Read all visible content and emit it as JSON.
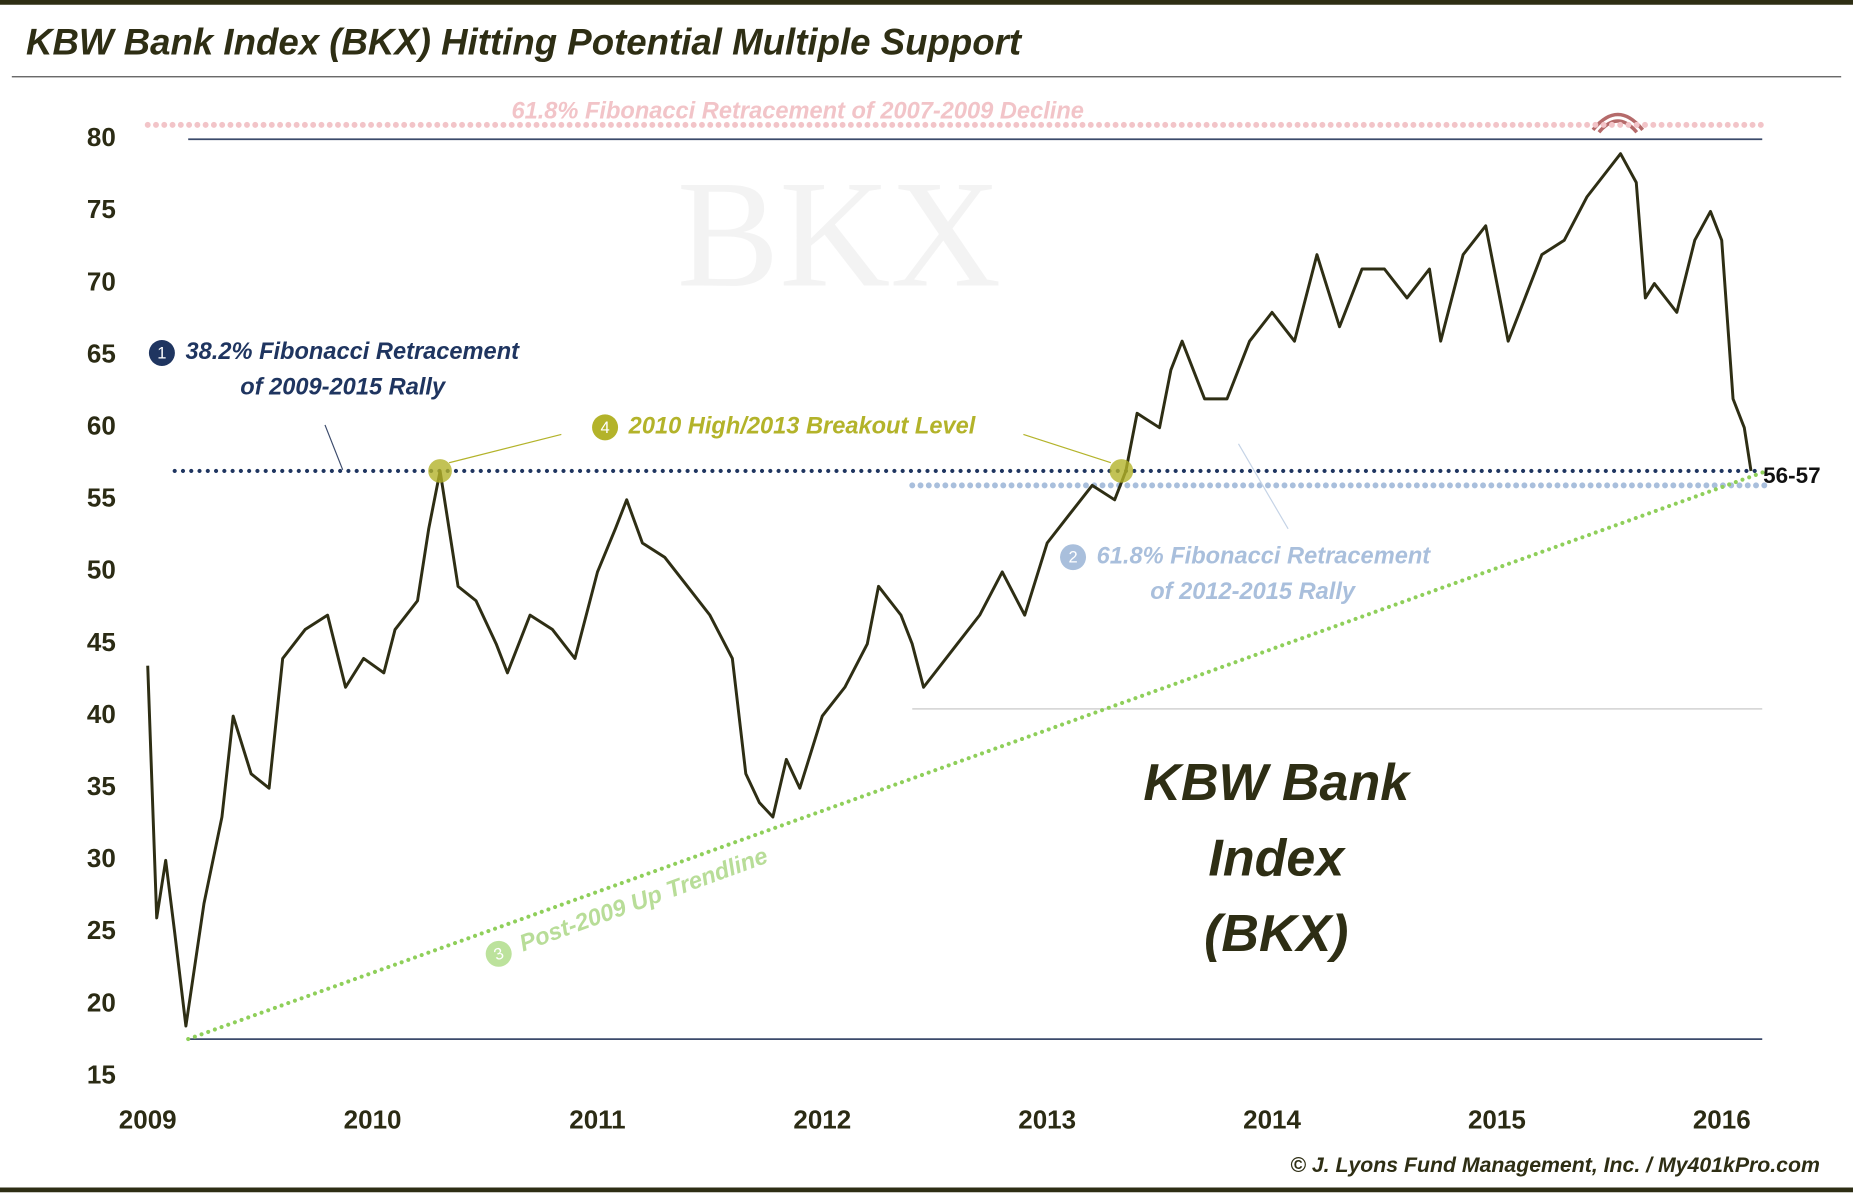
{
  "chart_data": {
    "type": "line",
    "title": "KBW Bank Index (BKX) Hitting Potential Multiple Support",
    "watermark": "BKX",
    "big_label": [
      "KBW Bank",
      "Index",
      "(BKX)"
    ],
    "footer": "© J. Lyons Fund Management, Inc. / My401kPro.com",
    "xlim": [
      2009,
      2016.2
    ],
    "xticks": [
      2009,
      2010,
      2011,
      2012,
      2013,
      2014,
      2015,
      2016
    ],
    "ylim": [
      15,
      80
    ],
    "yticks": [
      15,
      20,
      25,
      30,
      35,
      40,
      45,
      50,
      55,
      60,
      65,
      70,
      75,
      80
    ],
    "series": [
      {
        "name": "BKX",
        "color": "#2e2e14",
        "x": [
          2009.0,
          2009.04,
          2009.08,
          2009.12,
          2009.17,
          2009.25,
          2009.33,
          2009.38,
          2009.46,
          2009.54,
          2009.6,
          2009.7,
          2009.8,
          2009.88,
          2009.96,
          2010.05,
          2010.1,
          2010.2,
          2010.25,
          2010.3,
          2010.38,
          2010.46,
          2010.55,
          2010.6,
          2010.7,
          2010.8,
          2010.9,
          2011.0,
          2011.08,
          2011.13,
          2011.2,
          2011.3,
          2011.4,
          2011.5,
          2011.6,
          2011.66,
          2011.72,
          2011.78,
          2011.84,
          2011.9,
          2012.0,
          2012.1,
          2012.2,
          2012.25,
          2012.35,
          2012.4,
          2012.45,
          2012.5,
          2012.6,
          2012.7,
          2012.8,
          2012.9,
          2013.0,
          2013.1,
          2013.2,
          2013.3,
          2013.35,
          2013.4,
          2013.5,
          2013.55,
          2013.6,
          2013.7,
          2013.8,
          2013.9,
          2014.0,
          2014.1,
          2014.2,
          2014.3,
          2014.4,
          2014.5,
          2014.6,
          2014.7,
          2014.75,
          2014.85,
          2014.95,
          2015.05,
          2015.1,
          2015.2,
          2015.3,
          2015.4,
          2015.5,
          2015.55,
          2015.62,
          2015.66,
          2015.7,
          2015.8,
          2015.88,
          2015.95,
          2016.0,
          2016.05,
          2016.1,
          2016.13
        ],
        "values": [
          43.5,
          26,
          30,
          25,
          18.5,
          27,
          33,
          40,
          36,
          35,
          44,
          46,
          47,
          42,
          44,
          43,
          46,
          48,
          53,
          57,
          49,
          48,
          45,
          43,
          47,
          46,
          44,
          50,
          53,
          55,
          52,
          51,
          49,
          47,
          44,
          36,
          34,
          33,
          37,
          35,
          40,
          42,
          45,
          49,
          47,
          45,
          42,
          43,
          45,
          47,
          50,
          47,
          52,
          54,
          56,
          55,
          57,
          61,
          60,
          64,
          66,
          62,
          62,
          66,
          68,
          66,
          72,
          67,
          71,
          71,
          69,
          71,
          66,
          72,
          74,
          66,
          68,
          72,
          73,
          76,
          78,
          79,
          77,
          69,
          70,
          68,
          73,
          75,
          73,
          62,
          60,
          57
        ]
      }
    ],
    "annotations": [
      {
        "text": "61.8% Fibonacci Retracement of 2007-2009 Decline",
        "color": "#f2c4c8",
        "x": [
          2009.0,
          2016.2
        ],
        "values": [
          81,
          81
        ]
      },
      {
        "number": "1",
        "lines": [
          "38.2% Fibonacci Retracement",
          "of 2009-2015 Rally"
        ],
        "color": "#1f3560",
        "x": [
          2009.12,
          2016.18
        ],
        "values": [
          57,
          57
        ]
      },
      {
        "number": "2",
        "lines": [
          "61.8% Fibonacci Retracement",
          "of 2012-2015 Rally"
        ],
        "color": "#a9bfdc",
        "x": [
          2012.4,
          2016.2
        ],
        "values": [
          56,
          56
        ]
      },
      {
        "number": "3",
        "lines": [
          "Post-2009 Up Trendline"
        ],
        "color": "#8fcf5a",
        "x": [
          2009.18,
          2016.2
        ],
        "values": [
          17.6,
          57
        ]
      },
      {
        "number": "4",
        "lines": [
          "2010 High/2013 Breakout Level"
        ],
        "color": "#b3b32a",
        "x": [
          2010.3,
          2013.33
        ],
        "values": [
          57,
          57
        ]
      },
      {
        "text": "56-57",
        "color": "#111111"
      }
    ],
    "reference_lines": [
      {
        "x": [
          2009.18,
          2016.18
        ],
        "values": [
          80,
          80
        ],
        "color": "#3b4a6b"
      },
      {
        "x": [
          2009.18,
          2016.18
        ],
        "values": [
          17.6,
          17.6
        ],
        "color": "#3b4a6b"
      },
      {
        "x": [
          2012.4,
          2016.18
        ],
        "values": [
          40.5,
          40.5
        ],
        "color": "#d8d8d8"
      }
    ]
  }
}
